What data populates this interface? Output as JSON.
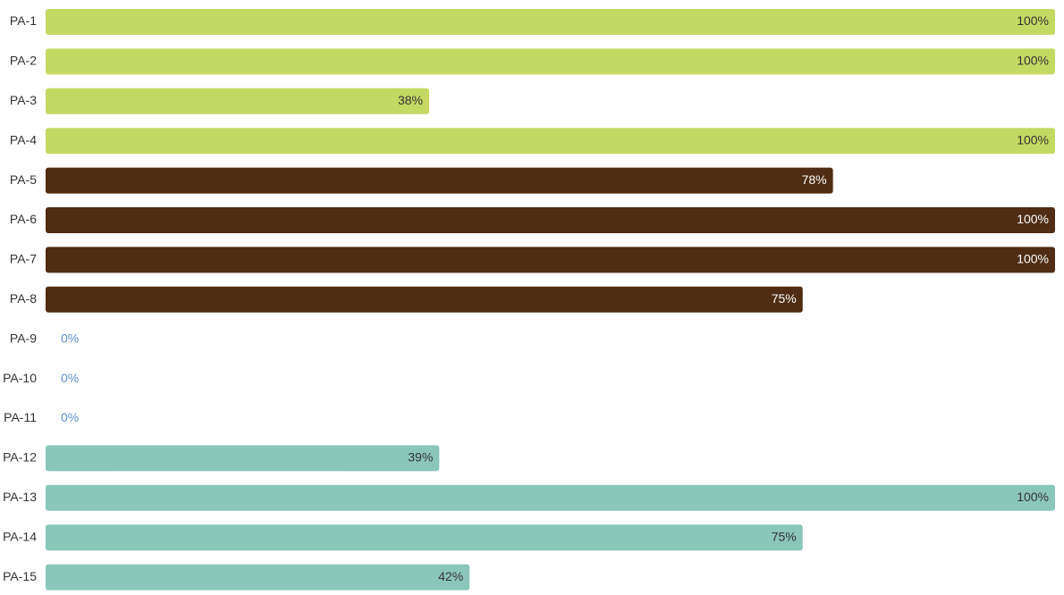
{
  "chart_data": {
    "type": "bar",
    "orientation": "horizontal",
    "title": "",
    "xlabel": "",
    "ylabel": "",
    "xlim": [
      0,
      100
    ],
    "value_suffix": "%",
    "grid": false,
    "legend": "none",
    "categories": [
      "PA-1",
      "PA-2",
      "PA-3",
      "PA-4",
      "PA-5",
      "PA-6",
      "PA-7",
      "PA-8",
      "PA-9",
      "PA-10",
      "PA-11",
      "PA-12",
      "PA-13",
      "PA-14",
      "PA-15"
    ],
    "values": [
      100,
      100,
      38,
      100,
      78,
      100,
      100,
      75,
      0,
      0,
      0,
      39,
      100,
      75,
      42
    ],
    "colors": [
      "#c4d963",
      "#c4d963",
      "#c4d963",
      "#c4d963",
      "#4f2c12",
      "#4f2c12",
      "#4f2c12",
      "#4f2c12",
      "#c4d963",
      "#c4d963",
      "#c4d963",
      "#8bc6bb",
      "#8bc6bb",
      "#8bc6bb",
      "#8bc6bb"
    ],
    "label_colors": [
      "#333333",
      "#333333",
      "#333333",
      "#333333",
      "#ffffff",
      "#ffffff",
      "#ffffff",
      "#ffffff",
      "#5b8fd4",
      "#5b8fd4",
      "#5b8fd4",
      "#333333",
      "#333333",
      "#333333",
      "#333333"
    ]
  }
}
